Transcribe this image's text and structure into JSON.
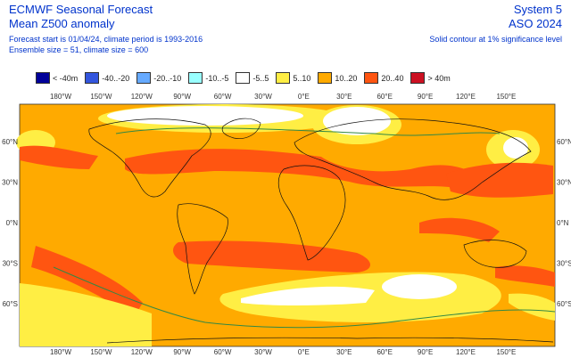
{
  "header": {
    "title": "ECMWF Seasonal Forecast",
    "subtitle": "Mean Z500 anomaly",
    "forecast_info": "Forecast start is 01/04/24, climate period is 1993-2016",
    "ensemble_info": "Ensemble size = 51, climate size = 600",
    "system": "System 5",
    "period": "ASO 2024",
    "note": "Solid contour at 1% significance level"
  },
  "legend": [
    {
      "label": "< -40m",
      "color": "#000099"
    },
    {
      "label": "-40..-20",
      "color": "#3355dd"
    },
    {
      "label": "-20..-10",
      "color": "#66aaff"
    },
    {
      "label": "-10..-5",
      "color": "#99ffff"
    },
    {
      "label": "-5..5",
      "color": "#ffffff"
    },
    {
      "label": "5..10",
      "color": "#ffee44"
    },
    {
      "label": "10..20",
      "color": "#ffaa00"
    },
    {
      "label": "20..40",
      "color": "#ff5511"
    },
    {
      "label": "> 40m",
      "color": "#cc1122"
    }
  ],
  "axes": {
    "lon_top": [
      "180°W",
      "150°W",
      "120°W",
      "90°W",
      "60°W",
      "30°W",
      "0°E",
      "30°E",
      "60°E",
      "90°E",
      "120°E",
      "150°E"
    ],
    "lon_bottom": [
      "180°W",
      "150°W",
      "120°W",
      "90°W",
      "60°W",
      "30°W",
      "0°E",
      "30°E",
      "60°E",
      "90°E",
      "120°E",
      "150°E"
    ],
    "lat_left": [
      "60°N",
      "30°N",
      "0°N",
      "30°S",
      "60°S"
    ],
    "lat_right": [
      "60°N",
      "30°N",
      "0°N",
      "30°S",
      "60°S"
    ]
  }
}
